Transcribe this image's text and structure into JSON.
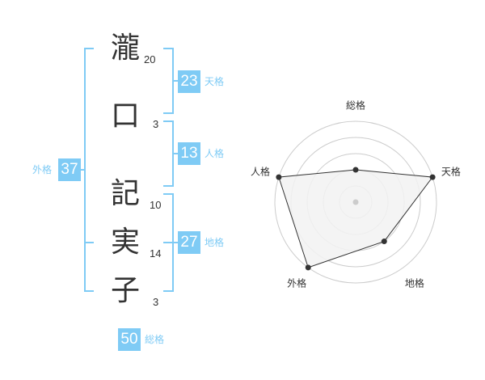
{
  "characters": [
    {
      "char": "瀧",
      "strokes": "20"
    },
    {
      "char": "口",
      "strokes": "3"
    },
    {
      "char": "記",
      "strokes": "10"
    },
    {
      "char": "実",
      "strokes": "14"
    },
    {
      "char": "子",
      "strokes": "3"
    }
  ],
  "kaku": {
    "tenkaku": {
      "label": "天格",
      "value": "23"
    },
    "jinkaku": {
      "label": "人格",
      "value": "13"
    },
    "chikaku": {
      "label": "地格",
      "value": "27"
    },
    "gaikaku": {
      "label": "外格",
      "value": "37"
    },
    "soukaku": {
      "label": "総格",
      "value": "50"
    }
  },
  "colors": {
    "accent": "#7fcbf5",
    "bracket": "#7fcbf5",
    "text": "#333333",
    "radar_fill": "#f2f2f2",
    "ring": "#cccccc"
  },
  "chart_data": {
    "type": "radar",
    "axes": [
      "総格",
      "天格",
      "地格",
      "外格",
      "人格"
    ],
    "values": [
      2,
      5,
      3,
      5,
      5
    ],
    "range": [
      0,
      5
    ],
    "rings": 5
  }
}
